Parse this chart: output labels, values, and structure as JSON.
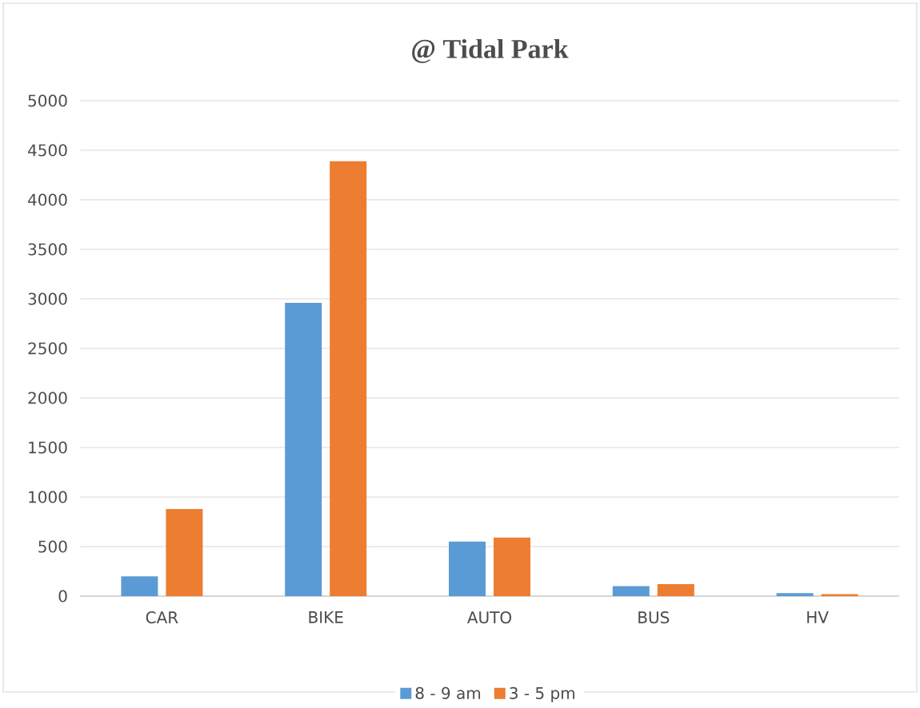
{
  "chart_data": {
    "type": "bar",
    "title": "@ Tidal Park",
    "categories": [
      "CAR",
      "BIKE",
      "AUTO",
      "BUS",
      "HV"
    ],
    "series": [
      {
        "name": "8 - 9 am",
        "color": "#5b9bd5",
        "values": [
          200,
          2960,
          550,
          100,
          30
        ]
      },
      {
        "name": "3 - 5 pm",
        "color": "#ed7d31",
        "values": [
          880,
          4390,
          590,
          120,
          20
        ]
      }
    ],
    "ylim": [
      0,
      5000
    ],
    "yticks": [
      0,
      500,
      1000,
      1500,
      2000,
      2500,
      3000,
      3500,
      4000,
      4500,
      5000
    ],
    "grid": "y",
    "legend": "bottom"
  }
}
